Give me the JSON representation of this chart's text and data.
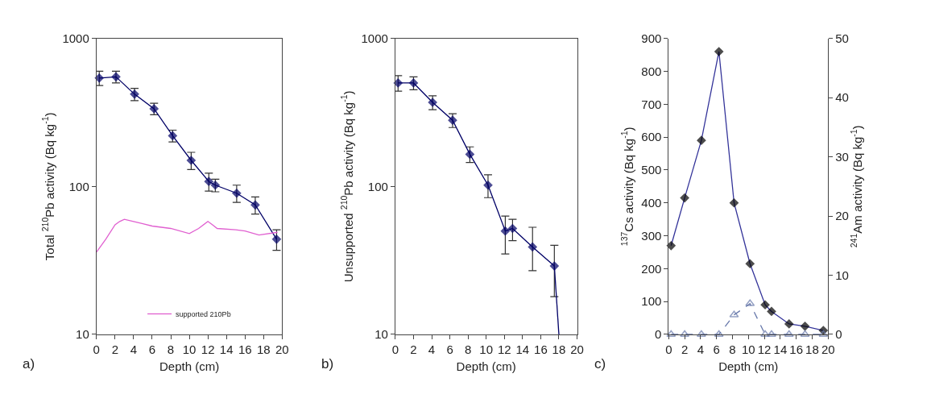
{
  "chart_data": [
    {
      "type": "line",
      "xlabel": "Depth (cm)",
      "ylabel": "Total $^{210}$Pb activity (Bq kg$^{-1}$)",
      "annotations": [
        "a)"
      ],
      "log": true,
      "xlim": [
        0,
        20
      ],
      "xticks": [
        0,
        2,
        4,
        6,
        8,
        10,
        12,
        14,
        16,
        18,
        20
      ],
      "ylim": [
        10,
        1000
      ],
      "yticks": [
        10,
        100,
        1000
      ],
      "legend": "bottom",
      "series": [
        {
          "color": "#000066",
          "marker": "diamond",
          "x": [
            0.3,
            2.1,
            4.1,
            6.2,
            8.2,
            10.2,
            12.1,
            12.8,
            15.1,
            17.1,
            19.4
          ],
          "values": [
            540,
            550,
            420,
            335,
            220,
            150,
            108,
            102,
            90,
            75,
            44
          ],
          "errors": [
            60,
            50,
            40,
            30,
            20,
            20,
            15,
            10,
            12,
            10,
            7
          ]
        },
        {
          "name": "supported 210Pb",
          "color": "#e060d0",
          "marker": "none",
          "x": [
            0,
            1,
            2,
            2.5,
            3,
            4,
            5,
            6,
            8,
            10,
            11,
            12,
            12.5,
            13,
            15,
            16,
            17.5,
            19.5
          ],
          "values": [
            36,
            44,
            55,
            58,
            60,
            58,
            56,
            54,
            52,
            48,
            52,
            58,
            55,
            52,
            51,
            50,
            47,
            49
          ]
        }
      ]
    },
    {
      "type": "line",
      "xlabel": "Depth (cm)",
      "ylabel": "Unsupported $^{210}$Pb activity (Bq kg$^{-1}$)",
      "annotations": [
        "b)"
      ],
      "log": true,
      "xlim": [
        0,
        20
      ],
      "xticks": [
        0,
        2,
        4,
        6,
        8,
        10,
        12,
        14,
        16,
        18,
        20
      ],
      "ylim": [
        10,
        1000
      ],
      "yticks": [
        10,
        100,
        1000
      ],
      "series": [
        {
          "color": "#000066",
          "marker": "diamond",
          "x": [
            0.3,
            2.0,
            4.1,
            6.3,
            8.2,
            10.2,
            12.1,
            12.9,
            15.1,
            17.5
          ],
          "values": [
            500,
            500,
            370,
            280,
            165,
            102,
            50,
            52,
            39,
            29
          ],
          "errors": [
            60,
            50,
            40,
            30,
            20,
            18,
            [
              35,
              63
            ],
            [
              43,
              60
            ],
            [
              27,
              53
            ],
            [
              18,
              40
            ]
          ]
        },
        {
          "color": "#000066",
          "marker": "none",
          "x": [
            17.5,
            18.0
          ],
          "values": [
            29,
            10
          ]
        }
      ]
    },
    {
      "type": "line",
      "xlabel": "Depth (cm)",
      "ylabel": "$^{137}$Cs activity (Bq kg$^{-1}$)",
      "y2label": "$^{241}$Am activity (Bq kg$^{-1}$)",
      "annotations": [
        "c)"
      ],
      "xlim": [
        0,
        20
      ],
      "xticks": [
        0,
        2,
        4,
        6,
        8,
        10,
        12,
        14,
        16,
        18,
        20
      ],
      "ylim": [
        0,
        900
      ],
      "yticks": [
        0,
        100,
        200,
        300,
        400,
        500,
        600,
        700,
        800,
        900
      ],
      "y2lim": [
        0,
        50
      ],
      "y2ticks": [
        0,
        10,
        20,
        30,
        40,
        50
      ],
      "series": [
        {
          "color": "#333399",
          "colors": [
            "#000000",
            "#000000",
            "#000000",
            "#000000",
            "#000000",
            "#000000",
            "#000000",
            "#000000",
            "#000000",
            "#000000",
            "#000000"
          ],
          "marker": "diamond",
          "x": [
            0.3,
            2.0,
            4.1,
            6.3,
            8.2,
            10.2,
            12.1,
            12.9,
            15.1,
            17.1,
            19.4
          ],
          "values": [
            270,
            415,
            590,
            860,
            400,
            215,
            90,
            70,
            32,
            25,
            12
          ]
        },
        {
          "color": "#6677aa",
          "marker": "triangle",
          "line_style": "dashed",
          "axis": "y2",
          "x": [
            0.3,
            2.0,
            4.1,
            6.3,
            8.2,
            10.2,
            12.1,
            12.9,
            15.1,
            17.1,
            19.4
          ],
          "values": [
            0,
            0,
            0,
            0,
            3.3,
            5.2,
            0,
            0,
            0,
            0,
            0
          ]
        }
      ]
    }
  ]
}
